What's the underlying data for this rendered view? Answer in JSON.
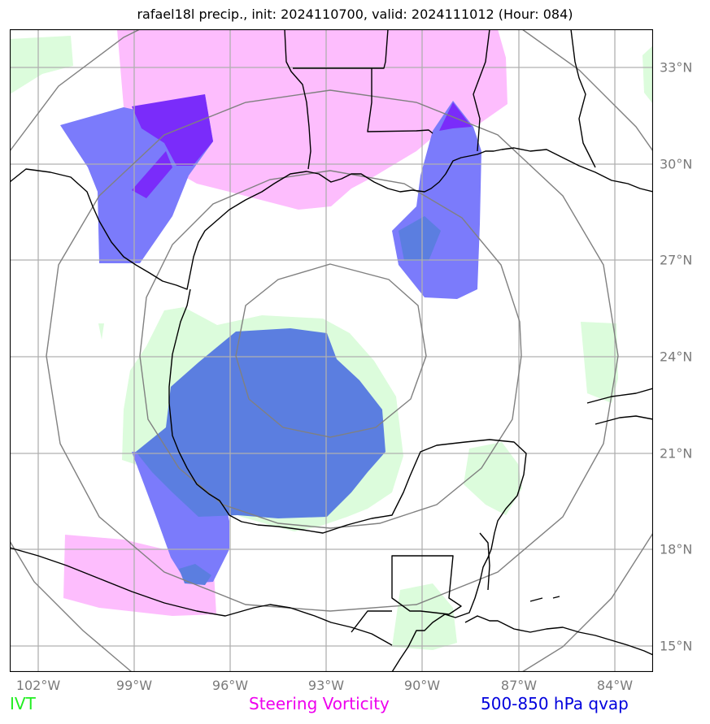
{
  "title": "rafael18l precip., init: 2024110700, valid: 2024111012 (Hour: 084)",
  "lat_labels": [
    "33°N",
    "30°N",
    "27°N",
    "24°N",
    "21°N",
    "18°N",
    "15°N"
  ],
  "lon_labels": [
    "102°W",
    "99°W",
    "96°W",
    "93°W",
    "90°W",
    "87°W",
    "84°W"
  ],
  "legend": {
    "ivt": "IVT",
    "vorticity": "Steering Vorticity",
    "qvap": "500-850 hPa qvap"
  },
  "colors": {
    "ivt": "#22ee22",
    "ivt_fill": "#dcfcdc",
    "vorticity": "#ee00ee",
    "vorticity_fill": "#fdbdfd",
    "qvap": "#0000dd",
    "qvap_fill": "#7b7bfb",
    "qvap_dark": "#7a2cfa",
    "blend": "#5b7ee0",
    "coast": "#000000",
    "grid": "#b0b0b0",
    "rings": "#808080"
  }
}
